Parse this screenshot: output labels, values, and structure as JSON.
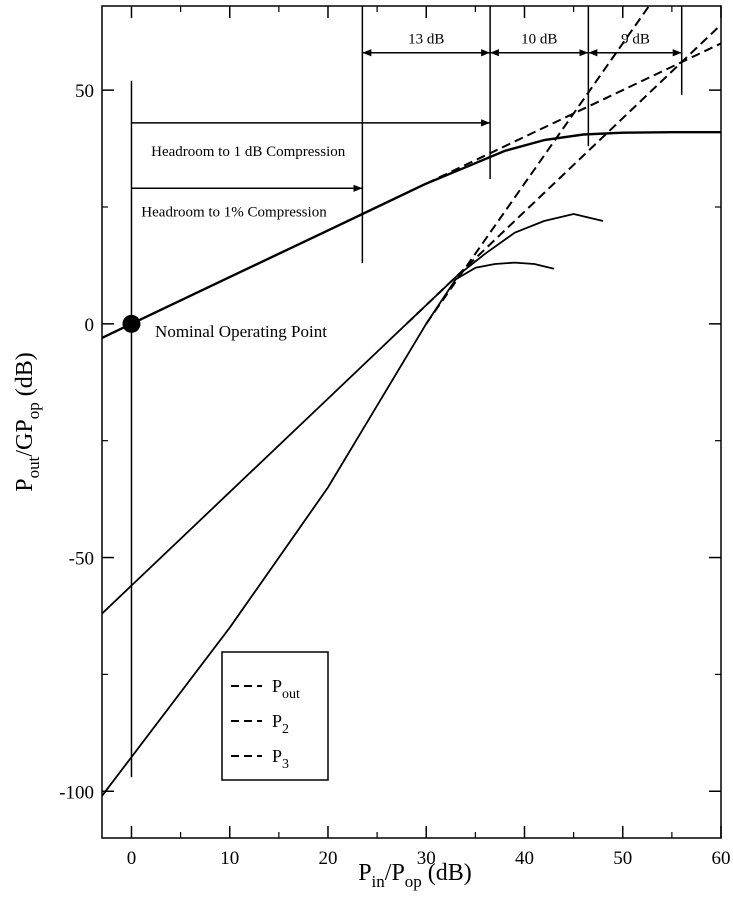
{
  "chart_data": {
    "type": "line",
    "xlabel": "P_in/P_op (dB)",
    "ylabel": "P_out/GP_op (dB)",
    "xlim": [
      -3,
      60
    ],
    "ylim": [
      -110,
      68
    ],
    "xticks": [
      0,
      10,
      20,
      30,
      40,
      50,
      60
    ],
    "yticks": [
      -100,
      -50,
      0,
      50
    ],
    "grid": false,
    "legend": {
      "position": "bottom-left",
      "entries": [
        {
          "main": "P",
          "sub": "out"
        },
        {
          "main": "P",
          "sub": "2"
        },
        {
          "main": "P",
          "sub": "3"
        }
      ]
    },
    "series": [
      {
        "x": [
          -3,
          0,
          10,
          20,
          25,
          30,
          34,
          38,
          42,
          46,
          50,
          55,
          60
        ],
        "y": [
          -3,
          0,
          10,
          20,
          25,
          30,
          33.5,
          37,
          39.3,
          40.5,
          40.9,
          41,
          41
        ]
      },
      {
        "x": [
          -3,
          20,
          30,
          33,
          36,
          39,
          42,
          45,
          48
        ],
        "y": [
          -62,
          -16,
          4,
          10,
          15,
          19.5,
          22,
          23.5,
          22
        ]
      },
      {
        "x": [
          -3,
          10,
          20,
          30,
          33,
          35,
          37,
          39,
          41,
          43
        ],
        "y": [
          -101,
          -65,
          -35,
          0,
          9.5,
          12,
          12.8,
          13.1,
          12.8,
          11.8
        ]
      }
    ],
    "extrapolations": [
      {
        "x": [
          30,
          60
        ],
        "y": [
          30,
          60
        ]
      },
      {
        "x": [
          28,
          60
        ],
        "y": [
          0,
          64
        ]
      },
      {
        "x": [
          30,
          55
        ],
        "y": [
          0,
          75
        ]
      }
    ],
    "operating_point": {
      "x": 0,
      "y": 0,
      "label": "Nominal Operating Point"
    },
    "annotations": {
      "headroom_1db": "Headroom to 1 dB Compression",
      "headroom_1pct": "Headroom to 1% Compression",
      "dim_13": "13 dB",
      "dim_10": "10 dB",
      "dim_9": "9 dB"
    },
    "markers_x": [
      23.5,
      36.5,
      46.5,
      56
    ]
  }
}
